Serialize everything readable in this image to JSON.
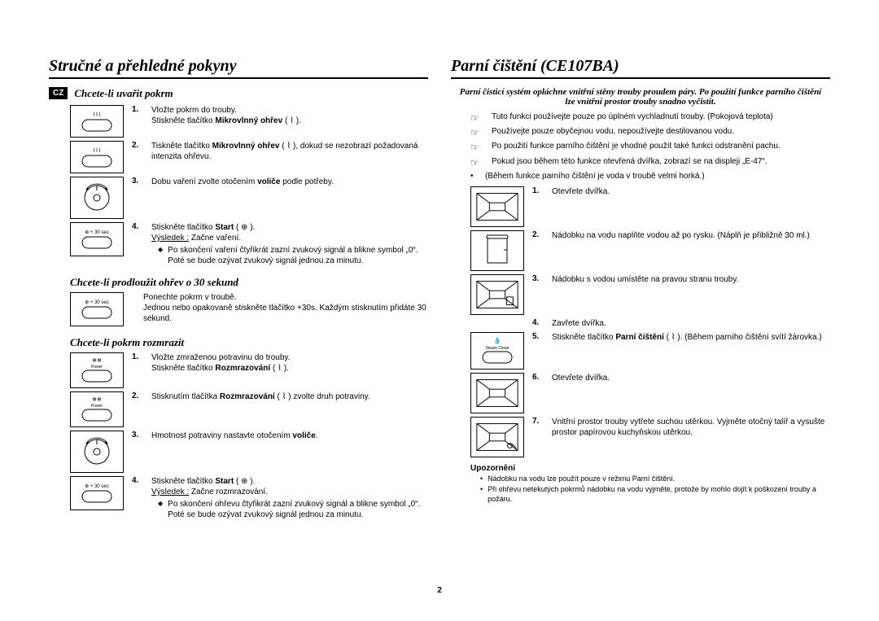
{
  "left": {
    "title": "Stručné a přehledné pokyny",
    "badge": "CZ",
    "section1": {
      "heading": "Chcete-li uvařit pokrm",
      "steps": [
        {
          "num": "1.",
          "text": "Vložte pokrm do trouby.\nStiskněte tlačítko ",
          "bold": "Mikrovlnný ohřev",
          "after": " ( ⌇ )."
        },
        {
          "num": "2.",
          "text": "Tiskněte tlačítko ",
          "bold": "Mikrovlnný ohřev",
          "after": " ( ⌇ ), dokud se nezobrazí požadovaná intenzita ohřevu."
        },
        {
          "num": "3.",
          "text": "Dobu vaření zvolte otočením ",
          "bold": "voliče",
          "after": " podle potřeby."
        },
        {
          "num": "4.",
          "pre": "Stiskněte tlačítko ",
          "bold": "Start",
          "after": " ( ⊕ ).",
          "result_label": "Výsledek :",
          "result_text": "Začne vaření.",
          "diamond": "Po skončení vaření čtyřikrát zazní zvukový signál a blikne symbol „0“. Poté se bude ozývat zvukový signál jednou za minutu."
        }
      ]
    },
    "section2": {
      "heading": "Chcete-li prodloužit ohřev o 30 sekund",
      "paragraph": "Ponechte pokrm v troubě.\nJednou nebo opakovaně stiskněte tlačítko +30s. Každým stisknutím přidáte 30 sekund."
    },
    "section3": {
      "heading": "Chcete-li pokrm rozmrazit",
      "steps": [
        {
          "num": "1.",
          "text": "Vložte zmraženou potravinu do trouby.\nStiskněte tlačítko ",
          "bold": "Rozmrazování",
          "after": " ( ⌇ )."
        },
        {
          "num": "2.",
          "text": "Stisknutím tlačítka ",
          "bold": "Rozmrazování",
          "after": " ( ⌇ ) zvolte druh potraviny."
        },
        {
          "num": "3.",
          "text": "Hmotnost potraviny nastavte otočením ",
          "bold": "voliče",
          "after": "."
        },
        {
          "num": "4.",
          "pre": "Stiskněte tlačítko ",
          "bold": "Start",
          "after": " ( ⊕ ).",
          "result_label": "Výsledek :",
          "result_text": "Začne rozmrazování.",
          "diamond": "Po skončení ohřevu čtyřikrát zazní zvukový signál a blikne symbol „0“. Poté se bude ozývat zvukový signál jednou za minutu."
        }
      ]
    }
  },
  "right": {
    "title": "Parní čištění (CE107BA)",
    "intro": "Parní čisticí systém opláchne vnitřní stěny trouby proudem páry. Po použití funkce parního čištění lze vnitřní prostor trouby snadno vyčistit.",
    "pointers": [
      "Tuto funkci používejte pouze po úplném vychladnutí trouby. (Pokojová teplota)",
      "Používejte pouze obyčejnou vodu, nepoužívejte destilovanou vodu.",
      "Po použití funkce parního čištění je vhodné použít také funkci odstranění pachu.",
      "Pokud jsou během této funkce otevřená dvířka, zobrazí se na displeji „E-47“."
    ],
    "note_line": "(Během funkce parního čištění je voda v troubě velmi horká.)",
    "steps": [
      {
        "num": "1.",
        "text": "Otevřete dvířka."
      },
      {
        "num": "2.",
        "text": "Nádobku na vodu naplňte vodou až po rysku. (Náplň je přibližně 30 ml.)"
      },
      {
        "num": "3.",
        "text": "Nádobku s vodou umístěte na pravou stranu trouby."
      },
      {
        "num": "4.",
        "text": "Zavřete dvířka."
      },
      {
        "num": "5.",
        "pre": "Stiskněte tlačítko ",
        "bold": "Parní čištění",
        "after": " ( ⌇ ). (Během parního čištění svítí žárovka.)"
      },
      {
        "num": "6.",
        "text": "Otevřete dvířka."
      },
      {
        "num": "7.",
        "text": "Vnitřní prostor trouby vytřete suchou utěrkou. Vyjměte otočný talíř a vysušte prostor papírovou kuchyňskou utěrkou."
      }
    ],
    "notice_title": "Upozornění",
    "notices": [
      {
        "text": "Nádobku na vodu lze použít pouze v režimu ",
        "bold": "Parní čištění",
        "after": "."
      },
      {
        "text": "Při ohřevu netekutých pokrmů nádobku na vodu vyjměte, protože by mohlo dojít k poškození trouby a požáru."
      }
    ]
  },
  "page_number": "2",
  "icons": {
    "plus30": "⊕ + 30 sec"
  }
}
